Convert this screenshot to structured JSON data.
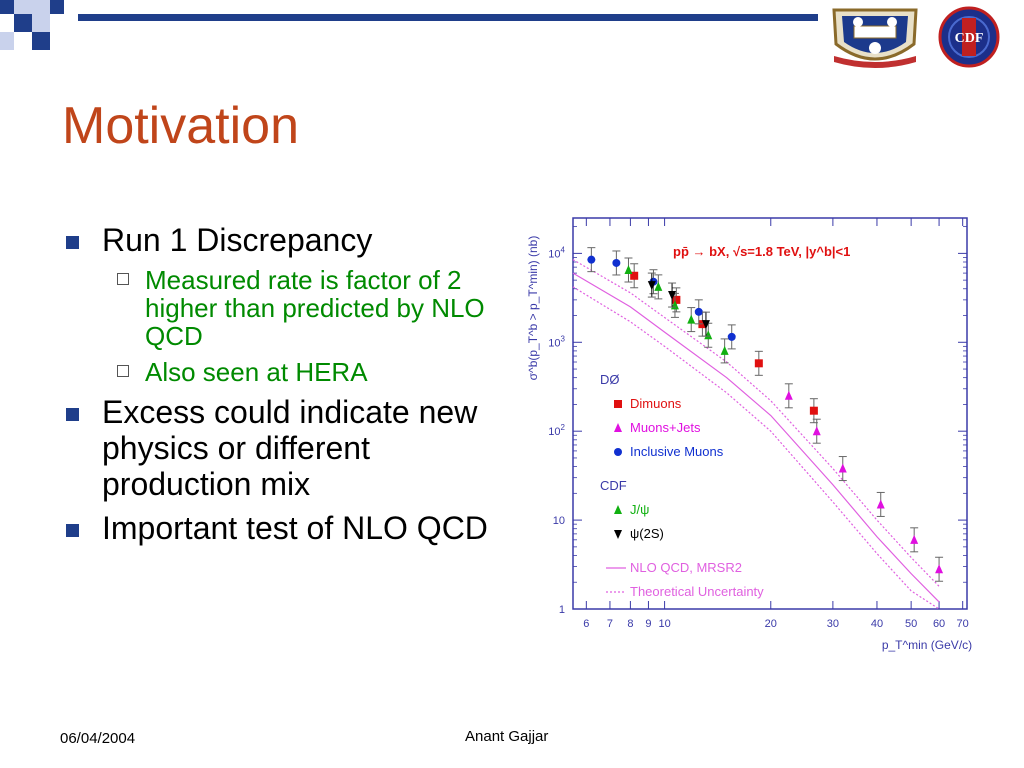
{
  "slide": {
    "title": "Motivation",
    "bullets": [
      {
        "text": "Run 1 Discrepancy",
        "sub": [
          "Measured rate is factor of 2 higher than predicted by NLO QCD",
          "Also seen at HERA"
        ]
      },
      {
        "text": "Excess could indicate new physics or different production mix",
        "sub": []
      },
      {
        "text": "Important test of NLO QCD",
        "sub": []
      }
    ],
    "footer": {
      "date": "06/04/2004",
      "author": "Anant Gajjar"
    }
  },
  "colors": {
    "title": "#c0451a",
    "bullet": "#1f3e8a",
    "sub_text": "#008a00",
    "axis": "#3a3aa8"
  },
  "logos": {
    "left": "oxford-crest-logo",
    "right": "cdf-logo",
    "cdf_text": "CDF"
  },
  "chart_data": {
    "type": "scatter",
    "title": "pp̄ → bX, √s=1.8 TeV, |y^b|<1",
    "xlabel": "p_T^min (GeV/c)",
    "ylabel": "σ^b(p_T^b > p_T^min) (nb)",
    "xscale": "log",
    "yscale": "log",
    "xlim": [
      5.5,
      72
    ],
    "ylim": [
      1,
      25000
    ],
    "xticks": [
      "6",
      "7",
      "8",
      "9",
      "10",
      "20",
      "30",
      "40",
      "50",
      "60",
      "70"
    ],
    "yticks": [
      "1",
      "10",
      "10^2",
      "10^3",
      "10^4"
    ],
    "legend_groups": [
      {
        "label": "DØ",
        "entries": [
          "Dimuons",
          "Muons+Jets",
          "Inclusive Muons"
        ]
      },
      {
        "label": "CDF",
        "entries": [
          "J/ψ",
          "ψ(2S)"
        ]
      },
      {
        "label": "",
        "entries": [
          "NLO QCD, MRSR2",
          "Theoretical Uncertainty"
        ]
      }
    ],
    "series": [
      {
        "name": "Dimuons",
        "color": "#e01010",
        "marker": "square",
        "points": [
          [
            8.2,
            5600
          ],
          [
            10.8,
            3000
          ],
          [
            12.8,
            1600
          ],
          [
            18.5,
            580
          ],
          [
            26.5,
            170
          ]
        ]
      },
      {
        "name": "Muons+Jets",
        "color": "#e010e0",
        "marker": "triangle",
        "points": [
          [
            22.5,
            250
          ],
          [
            27,
            100
          ],
          [
            32,
            38
          ],
          [
            41,
            15
          ],
          [
            51,
            6
          ],
          [
            60,
            2.8
          ]
        ]
      },
      {
        "name": "Inclusive Muons",
        "color": "#1030d0",
        "marker": "circle",
        "points": [
          [
            6.2,
            8500
          ],
          [
            7.3,
            7800
          ],
          [
            9.3,
            4800
          ],
          [
            12.5,
            2200
          ],
          [
            15.5,
            1150
          ]
        ]
      },
      {
        "name": "J/ψ",
        "color": "#10b010",
        "marker": "triangle",
        "points": [
          [
            7.9,
            6500
          ],
          [
            9.6,
            4200
          ],
          [
            10.7,
            2600
          ],
          [
            11.9,
            1800
          ],
          [
            13.3,
            1200
          ],
          [
            14.8,
            800
          ]
        ]
      },
      {
        "name": "ψ(2S)",
        "color": "#000000",
        "marker": "triangle-down",
        "points": [
          [
            9.2,
            4400
          ],
          [
            10.5,
            3400
          ],
          [
            13.1,
            1600
          ]
        ]
      }
    ],
    "curves": [
      {
        "name": "NLO QCD, MRSR2",
        "color": "#e060e0",
        "style": "solid",
        "points": [
          [
            5.5,
            6000
          ],
          [
            8,
            2500
          ],
          [
            10,
            1300
          ],
          [
            15,
            400
          ],
          [
            20,
            150
          ],
          [
            30,
            25
          ],
          [
            40,
            6.5
          ],
          [
            50,
            2.5
          ],
          [
            60,
            1.2
          ]
        ]
      },
      {
        "name": "Theoretical Uncertainty",
        "color": "#e060e0",
        "style": "dotted",
        "points": [
          [
            5.5,
            8500
          ],
          [
            8,
            3600
          ],
          [
            10,
            1900
          ],
          [
            15,
            600
          ],
          [
            20,
            220
          ],
          [
            30,
            38
          ],
          [
            40,
            10
          ],
          [
            50,
            3.8
          ],
          [
            60,
            1.8
          ]
        ]
      },
      {
        "name": "Theoretical Uncertainty",
        "color": "#e060e0",
        "style": "dotted",
        "points": [
          [
            5.5,
            4200
          ],
          [
            8,
            1700
          ],
          [
            10,
            900
          ],
          [
            15,
            270
          ],
          [
            20,
            100
          ],
          [
            30,
            16
          ],
          [
            40,
            4.2
          ],
          [
            50,
            1.6
          ],
          [
            60,
            0.8
          ]
        ]
      }
    ]
  }
}
